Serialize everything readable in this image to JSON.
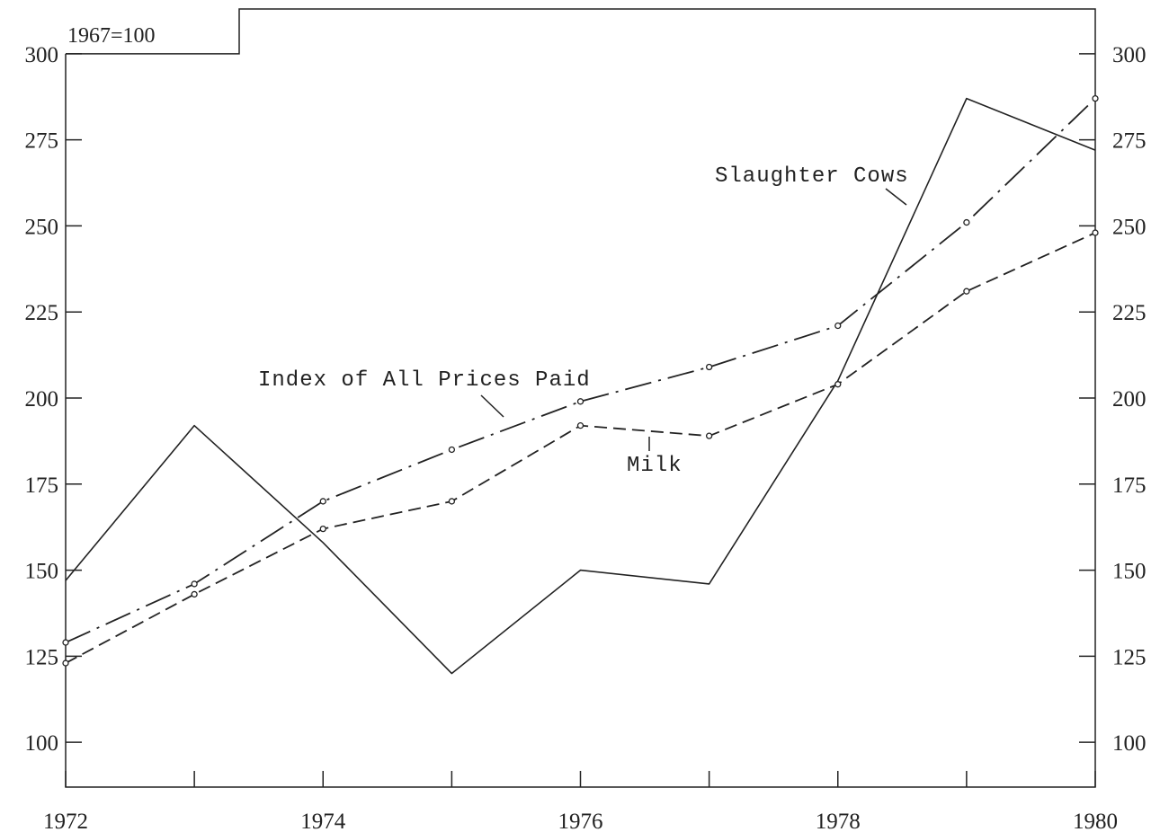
{
  "chart_data": {
    "type": "line",
    "base_note": "1967=100",
    "x": [
      1972,
      1973,
      1974,
      1975,
      1976,
      1977,
      1978,
      1979,
      1980
    ],
    "x_tick_labels": [
      "1972",
      "1974",
      "1976",
      "1978",
      "1980"
    ],
    "x_tick_values": [
      1972,
      1974,
      1976,
      1978,
      1980
    ],
    "y_ticks": [
      100,
      125,
      150,
      175,
      200,
      225,
      250,
      275,
      300
    ],
    "xlim": [
      1972,
      1980
    ],
    "ylim": [
      87,
      313
    ],
    "grid": false,
    "series": [
      {
        "name": "Slaughter Cows",
        "style": "solid",
        "markers": false,
        "values": [
          147,
          192,
          158,
          120,
          150,
          146,
          205,
          287,
          272
        ]
      },
      {
        "name": "Index of All Prices Paid",
        "style": "dash-dot",
        "markers": true,
        "values": [
          129,
          146,
          170,
          185,
          199,
          209,
          221,
          251,
          287
        ]
      },
      {
        "name": "Milk",
        "style": "dashed",
        "markers": true,
        "values": [
          123,
          143,
          162,
          170,
          192,
          189,
          204,
          231,
          248
        ]
      }
    ]
  },
  "style": {
    "ink": "#222222",
    "background": "#ffffff"
  }
}
